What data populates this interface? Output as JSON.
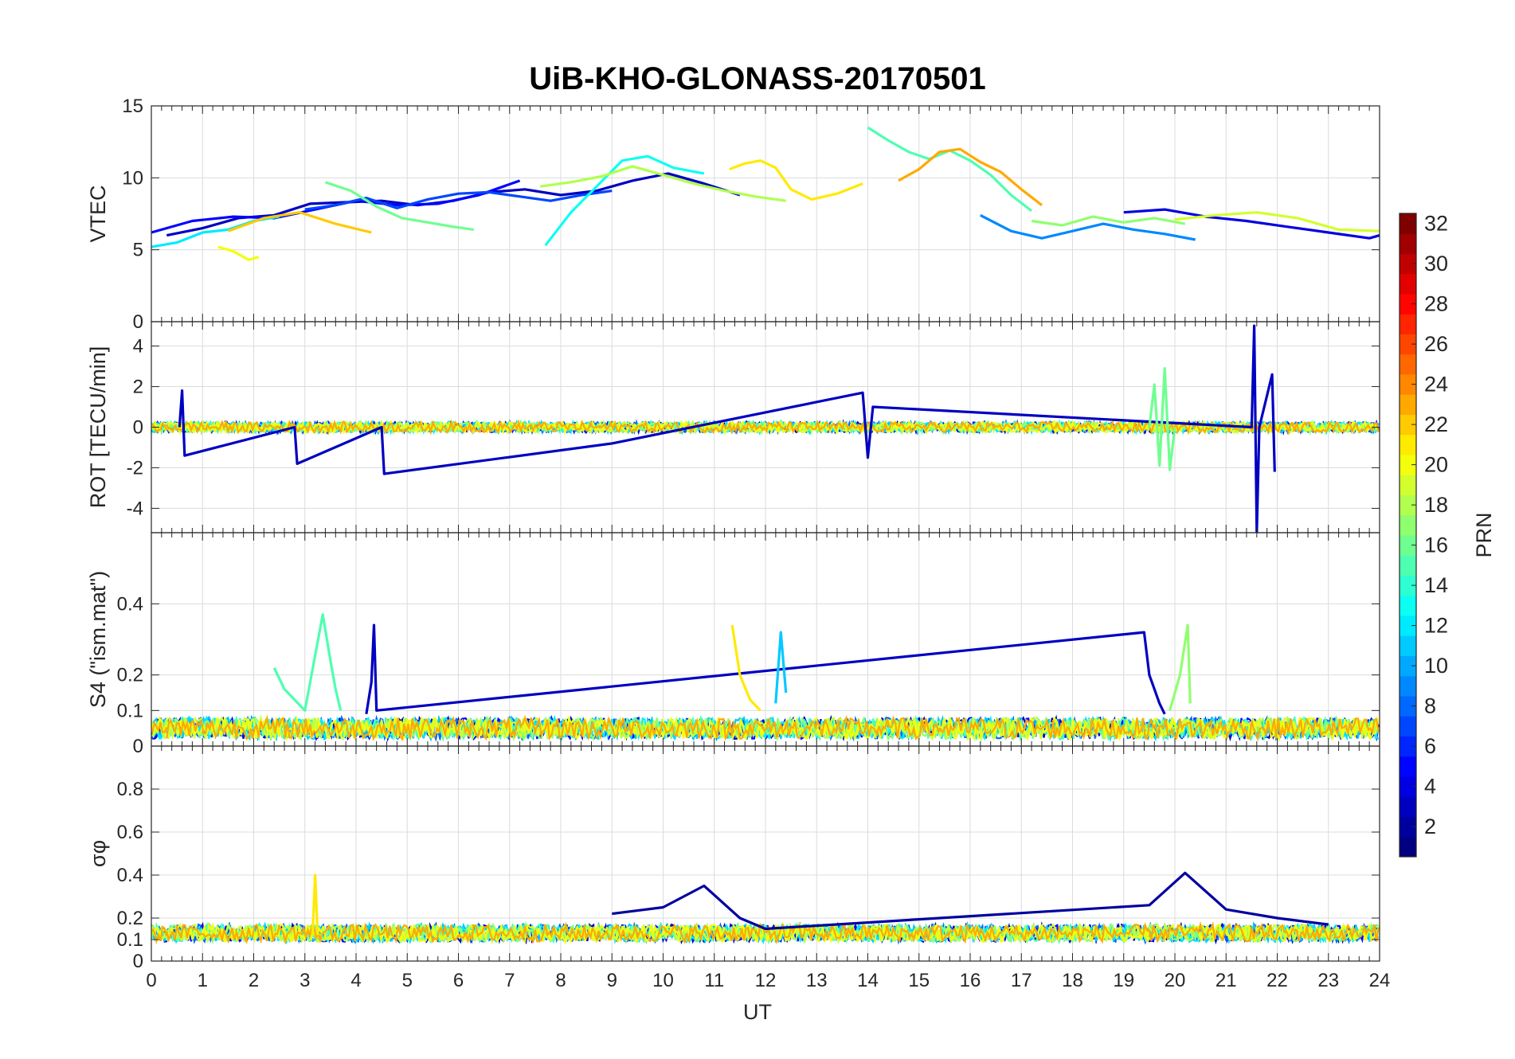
{
  "chart_data": {
    "type": "line",
    "title": "UiB-KHO-GLONASS-20170501",
    "xlabel": "UT",
    "xlim": [
      0,
      24
    ],
    "x_ticks": [
      0,
      1,
      2,
      3,
      4,
      5,
      6,
      7,
      8,
      9,
      10,
      11,
      12,
      13,
      14,
      15,
      16,
      17,
      18,
      19,
      20,
      21,
      22,
      23,
      24
    ],
    "grid": true,
    "colorbar": {
      "label": "PRN",
      "colormap": "jet",
      "range": [
        1,
        32
      ],
      "ticks": [
        2,
        4,
        6,
        8,
        10,
        12,
        14,
        16,
        18,
        20,
        22,
        24,
        26,
        28,
        30,
        32
      ],
      "placement": "right"
    },
    "panels": [
      {
        "ylabel": "VTEC",
        "ylim": [
          0,
          15
        ],
        "y_ticks": [
          0,
          5,
          10,
          15
        ],
        "series": [
          {
            "prn": 3,
            "x": [
              0.3,
              1.0,
              1.7,
              2.4,
              3.1,
              3.8,
              4.5,
              5.2,
              5.9,
              6.6,
              7.3,
              8.0,
              8.7,
              9.4,
              10.1,
              10.8,
              11.5
            ],
            "y": [
              6.0,
              6.5,
              7.2,
              7.4,
              8.2,
              8.3,
              8.4,
              8.1,
              8.4,
              9.0,
              9.2,
              8.8,
              9.1,
              9.8,
              10.3,
              9.6,
              8.8
            ]
          },
          {
            "prn": 5,
            "x": [
              0.0,
              0.8,
              1.6,
              2.4,
              3.2,
              4.0,
              4.8,
              5.6,
              6.4,
              7.2
            ],
            "y": [
              6.2,
              7.0,
              7.3,
              7.2,
              7.8,
              8.4,
              8.1,
              8.2,
              8.8,
              9.8
            ]
          },
          {
            "prn": 7,
            "x": [
              3.0,
              3.6,
              4.2,
              4.8,
              5.4,
              6.0,
              6.6,
              7.2,
              7.8,
              8.4,
              9.0
            ],
            "y": [
              7.8,
              8.1,
              8.6,
              7.9,
              8.5,
              8.9,
              9.0,
              8.7,
              8.4,
              8.8,
              9.1
            ]
          },
          {
            "prn": 9,
            "x": [
              16.2,
              16.8,
              17.4,
              18.0,
              18.6,
              19.2,
              19.8,
              20.4
            ],
            "y": [
              7.4,
              6.3,
              5.8,
              6.3,
              6.8,
              6.4,
              6.1,
              5.7
            ]
          },
          {
            "prn": 13,
            "x": [
              7.7,
              8.2,
              8.7,
              9.2,
              9.7,
              10.2,
              10.8
            ],
            "y": [
              5.3,
              7.6,
              9.4,
              11.2,
              11.5,
              10.7,
              10.3
            ]
          },
          {
            "prn": 12,
            "x": [
              0.0,
              0.5,
              1.0,
              1.5,
              2.0,
              2.5
            ],
            "y": [
              5.2,
              5.5,
              6.2,
              6.4,
              7.0,
              7.3
            ]
          },
          {
            "prn": 16,
            "x": [
              3.4,
              3.9,
              4.4,
              4.9,
              5.4,
              5.9,
              6.3
            ],
            "y": [
              9.7,
              9.1,
              8.0,
              7.2,
              6.9,
              6.6,
              6.4
            ]
          },
          {
            "prn": 15,
            "x": [
              14.0,
              14.4,
              14.8,
              15.2,
              15.6,
              16.0,
              16.4,
              16.8,
              17.2
            ],
            "y": [
              13.5,
              12.6,
              11.8,
              11.3,
              11.9,
              11.2,
              10.2,
              8.8,
              7.7
            ]
          },
          {
            "prn": 18,
            "x": [
              7.6,
              8.2,
              8.8,
              9.4,
              10.0,
              10.6,
              11.2,
              11.8,
              12.4
            ],
            "y": [
              9.4,
              9.7,
              10.1,
              10.8,
              10.2,
              9.6,
              9.1,
              8.7,
              8.4
            ]
          },
          {
            "prn": 20,
            "x": [
              1.3,
              1.6,
              1.9,
              2.1
            ],
            "y": [
              5.2,
              4.9,
              4.3,
              4.5
            ]
          },
          {
            "prn": 21,
            "x": [
              11.3,
              11.6,
              11.9,
              12.2,
              12.5,
              12.9,
              13.4,
              13.9
            ],
            "y": [
              10.6,
              11.0,
              11.2,
              10.7,
              9.2,
              8.5,
              8.9,
              9.6
            ]
          },
          {
            "prn": 23,
            "x": [
              14.6,
              15.0,
              15.4,
              15.8,
              16.2,
              16.6,
              17.0,
              17.4
            ],
            "y": [
              9.8,
              10.6,
              11.8,
              12.0,
              11.1,
              10.4,
              9.2,
              8.1
            ]
          },
          {
            "prn": 22,
            "x": [
              1.5,
              2.2,
              2.9,
              3.6,
              4.3
            ],
            "y": [
              6.3,
              7.2,
              7.6,
              6.8,
              6.2
            ]
          },
          {
            "prn": 4,
            "x": [
              19.0,
              19.8,
              20.6,
              21.4,
              22.2,
              23.0,
              23.8,
              24.0
            ],
            "y": [
              7.6,
              7.8,
              7.3,
              7.0,
              6.6,
              6.2,
              5.8,
              6.0
            ]
          },
          {
            "prn": 19,
            "x": [
              20.0,
              20.8,
              21.6,
              22.4,
              23.2,
              24.0
            ],
            "y": [
              7.1,
              7.4,
              7.6,
              7.2,
              6.4,
              6.3
            ]
          },
          {
            "prn": 17,
            "x": [
              17.2,
              17.8,
              18.4,
              19.0,
              19.6,
              20.2
            ],
            "y": [
              7.0,
              6.7,
              7.3,
              6.9,
              7.2,
              6.8
            ]
          }
        ]
      },
      {
        "ylabel": "ROT [TECU/min]",
        "ylim": [
          -5.2,
          5.2
        ],
        "y_ticks": [
          -4,
          -2,
          0,
          2,
          4
        ],
        "series": [
          {
            "prn": 3,
            "x": [
              0.55,
              0.6,
              0.65,
              2.8,
              2.85,
              4.5,
              4.55,
              9.0,
              13.9,
              14.0,
              14.1,
              21.5,
              21.55,
              21.6,
              21.65,
              21.9,
              21.95
            ],
            "y": [
              0,
              1.8,
              -1.4,
              0,
              -1.8,
              0,
              -2.3,
              -0.8,
              1.7,
              -1.5,
              1.0,
              0,
              5.0,
              -5.2,
              0,
              2.6,
              -2.2
            ]
          },
          {
            "prn": 16,
            "x": [
              19.5,
              19.6,
              19.7,
              19.8,
              19.9,
              20.0
            ],
            "y": [
              0,
              2.1,
              -1.9,
              2.9,
              -2.1,
              0
            ]
          }
        ]
      },
      {
        "ylabel": "S4 (\"ism.mat\")",
        "ylim": [
          0,
          0.6
        ],
        "y_ticks": [
          0,
          0.1,
          0.2,
          0.4
        ],
        "series": [
          {
            "prn": 3,
            "x": [
              4.2,
              4.3,
              4.35,
              4.4,
              19.4,
              19.5,
              19.6,
              19.7,
              19.8
            ],
            "y": [
              0.09,
              0.18,
              0.34,
              0.1,
              0.32,
              0.2,
              0.16,
              0.12,
              0.09
            ]
          },
          {
            "prn": 15,
            "x": [
              2.4,
              2.6,
              2.8,
              3.0,
              3.35,
              3.5,
              3.6,
              3.7
            ],
            "y": [
              0.22,
              0.16,
              0.13,
              0.1,
              0.37,
              0.24,
              0.16,
              0.1
            ]
          },
          {
            "prn": 21,
            "x": [
              11.35,
              11.5,
              11.7,
              11.9
            ],
            "y": [
              0.34,
              0.2,
              0.13,
              0.1
            ]
          },
          {
            "prn": 11,
            "x": [
              12.2,
              12.3,
              12.4
            ],
            "y": [
              0.12,
              0.32,
              0.15
            ]
          },
          {
            "prn": 17,
            "x": [
              19.9,
              20.1,
              20.25,
              20.3
            ],
            "y": [
              0.1,
              0.2,
              0.34,
              0.12
            ]
          }
        ]
      },
      {
        "ylabel": "σφ",
        "ylim": [
          0,
          1
        ],
        "y_ticks": [
          0,
          0.1,
          0.2,
          0.4,
          0.6,
          0.8
        ],
        "series": [
          {
            "prn": 2,
            "x": [
              9.0,
              10.0,
              10.8,
              11.5,
              12.0,
              19.5,
              20.2,
              21.0,
              22.0,
              23.0
            ],
            "y": [
              0.22,
              0.25,
              0.35,
              0.2,
              0.15,
              0.26,
              0.41,
              0.24,
              0.2,
              0.17
            ]
          },
          {
            "prn": 21,
            "x": [
              3.15,
              3.2,
              3.25
            ],
            "y": [
              0.12,
              0.4,
              0.12
            ]
          }
        ]
      }
    ]
  }
}
